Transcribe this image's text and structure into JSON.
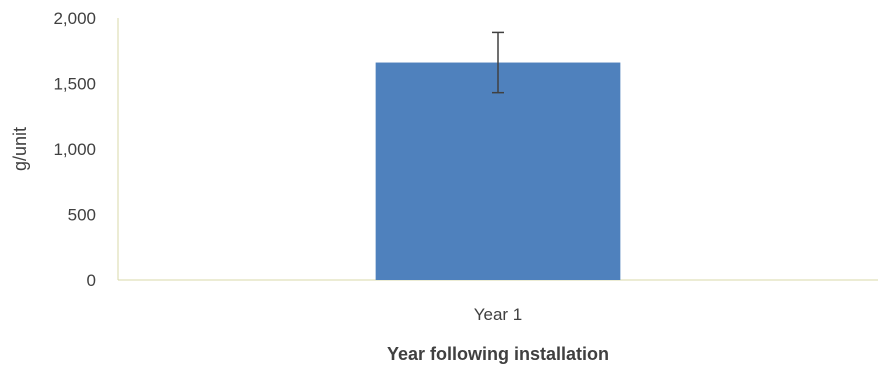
{
  "chart_data": {
    "type": "bar",
    "categories": [
      "Year 1"
    ],
    "series": [
      {
        "values": [
          1660
        ],
        "error": [
          [
            1430,
            1890
          ]
        ]
      }
    ],
    "title": "",
    "xlabel": "Year following installation",
    "ylabel": "g/unit",
    "ylim": [
      0,
      2000
    ],
    "yticks": [
      0,
      500,
      1000,
      1500,
      2000
    ],
    "ytick_labels": [
      "0",
      "500",
      "1,000",
      "1,500",
      "2,000"
    ],
    "grid": false,
    "legend": "none",
    "colors": {
      "bar": "#4f81bd",
      "error_bar": "#404040",
      "axis": "#d9d9a9",
      "text": "#404040"
    }
  }
}
